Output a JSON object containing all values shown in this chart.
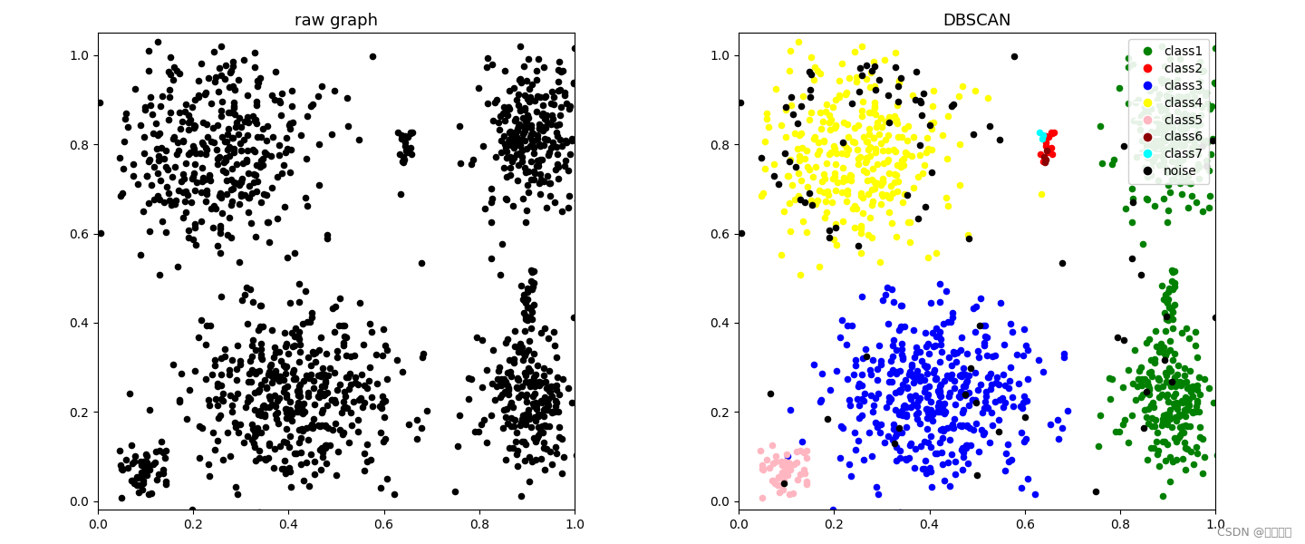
{
  "title_left": "raw graph",
  "title_right": "DBSCAN",
  "watermark": "CSDN @快乐江湖",
  "legend_labels": [
    "class1",
    "class2",
    "class3",
    "class4",
    "class5",
    "class6",
    "class7",
    "noise"
  ],
  "legend_colors": [
    "#008000",
    "#ff0000",
    "#0000ff",
    "#ffff00",
    "#ffb6c1",
    "#8b0000",
    "#00ffff",
    "#000000"
  ],
  "cluster_colors": {
    "class1": "#008000",
    "class2": "#ff0000",
    "class3": "#0000ff",
    "class4": "#ffff00",
    "class5": "#ffb6c1",
    "class6": "#8b0000",
    "class7": "#00ffff",
    "noise": "#000000"
  },
  "xlim": [
    0.0,
    1.0
  ],
  "ylim": [
    -0.02,
    1.05
  ],
  "figsize": [
    14.4,
    6.0
  ],
  "dpi": 100,
  "markersize": 30
}
